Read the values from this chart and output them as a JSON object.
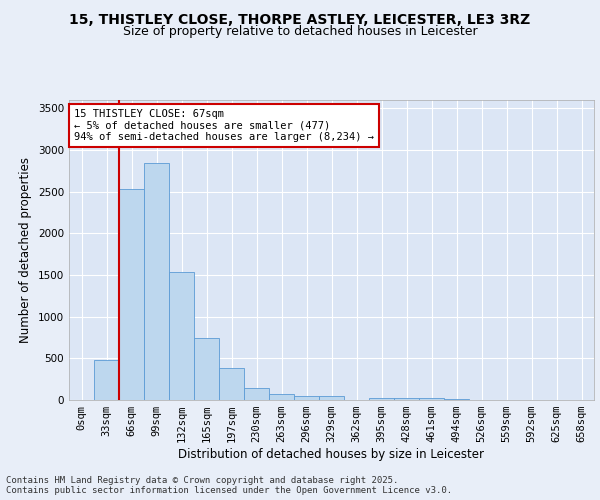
{
  "title_line1": "15, THISTLEY CLOSE, THORPE ASTLEY, LEICESTER, LE3 3RZ",
  "title_line2": "Size of property relative to detached houses in Leicester",
  "xlabel": "Distribution of detached houses by size in Leicester",
  "ylabel": "Number of detached properties",
  "bar_labels": [
    "0sqm",
    "33sqm",
    "66sqm",
    "99sqm",
    "132sqm",
    "165sqm",
    "197sqm",
    "230sqm",
    "263sqm",
    "296sqm",
    "329sqm",
    "362sqm",
    "395sqm",
    "428sqm",
    "461sqm",
    "494sqm",
    "526sqm",
    "559sqm",
    "592sqm",
    "625sqm",
    "658sqm"
  ],
  "bar_heights": [
    5,
    480,
    2530,
    2840,
    1540,
    750,
    390,
    140,
    70,
    50,
    50,
    0,
    30,
    25,
    20,
    15,
    5,
    3,
    2,
    1,
    0
  ],
  "bar_color": "#bdd7ee",
  "bar_edge_color": "#5b9bd5",
  "vline_color": "#cc0000",
  "vline_position": 1.5,
  "annotation_text": "15 THISTLEY CLOSE: 67sqm\n← 5% of detached houses are smaller (477)\n94% of semi-detached houses are larger (8,234) →",
  "annotation_box_facecolor": "#ffffff",
  "annotation_box_edgecolor": "#cc0000",
  "ylim": [
    0,
    3600
  ],
  "yticks": [
    0,
    500,
    1000,
    1500,
    2000,
    2500,
    3000,
    3500
  ],
  "plot_bg_color": "#dce6f5",
  "fig_bg_color": "#e8eef8",
  "grid_color": "#ffffff",
  "footnote": "Contains HM Land Registry data © Crown copyright and database right 2025.\nContains public sector information licensed under the Open Government Licence v3.0.",
  "title_fontsize": 10,
  "subtitle_fontsize": 9,
  "axis_label_fontsize": 8.5,
  "tick_fontsize": 7.5,
  "annotation_fontsize": 7.5,
  "footnote_fontsize": 6.5
}
